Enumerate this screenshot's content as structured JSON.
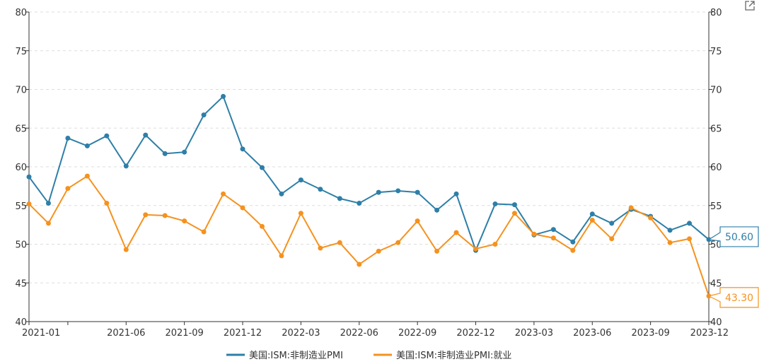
{
  "chart_data": {
    "type": "line",
    "x": [
      "2021-01",
      "2021-02",
      "2021-03",
      "2021-04",
      "2021-05",
      "2021-06",
      "2021-07",
      "2021-08",
      "2021-09",
      "2021-10",
      "2021-11",
      "2021-12",
      "2022-01",
      "2022-02",
      "2022-03",
      "2022-04",
      "2022-05",
      "2022-06",
      "2022-07",
      "2022-08",
      "2022-09",
      "2022-10",
      "2022-11",
      "2022-12",
      "2023-01",
      "2023-02",
      "2023-03",
      "2023-04",
      "2023-05",
      "2023-06",
      "2023-07",
      "2023-08",
      "2023-09",
      "2023-10",
      "2023-11",
      "2023-12"
    ],
    "x_tick_labels": [
      "2021-01",
      "2021-06",
      "2021-09",
      "2021-12",
      "2022-03",
      "2022-06",
      "2022-09",
      "2022-12",
      "2023-03",
      "2023-06",
      "2023-09",
      "2023-12"
    ],
    "ylim": [
      40,
      80
    ],
    "y_ticks": [
      40,
      45,
      50,
      55,
      60,
      65,
      70,
      75,
      80
    ],
    "grid": true,
    "legend_position": "bottom",
    "series": [
      {
        "name": "美国:ISM:非制造业PMI",
        "color": "#2e7fa8",
        "values": [
          58.7,
          55.3,
          63.7,
          62.7,
          64.0,
          60.1,
          64.1,
          61.7,
          61.9,
          66.7,
          69.1,
          62.3,
          59.9,
          56.5,
          58.3,
          57.1,
          55.9,
          55.3,
          56.7,
          56.9,
          56.7,
          54.4,
          56.5,
          49.2,
          55.2,
          55.1,
          51.2,
          51.9,
          50.3,
          53.9,
          52.7,
          54.5,
          53.6,
          51.8,
          52.7,
          50.6
        ],
        "end_label": "50.60"
      },
      {
        "name": "美国:ISM:非制造业PMI:就业",
        "color": "#f5921e",
        "values": [
          55.2,
          52.7,
          57.2,
          58.8,
          55.3,
          49.3,
          53.8,
          53.7,
          53.0,
          51.6,
          56.5,
          54.7,
          52.3,
          48.5,
          54.0,
          49.5,
          50.2,
          47.4,
          49.1,
          50.2,
          53.0,
          49.1,
          51.5,
          49.4,
          50.0,
          54.0,
          51.3,
          50.8,
          49.2,
          53.1,
          50.7,
          54.7,
          53.4,
          50.2,
          50.7,
          43.3
        ],
        "end_label": "43.30"
      }
    ]
  },
  "icons": {
    "export": "open-external-icon"
  }
}
